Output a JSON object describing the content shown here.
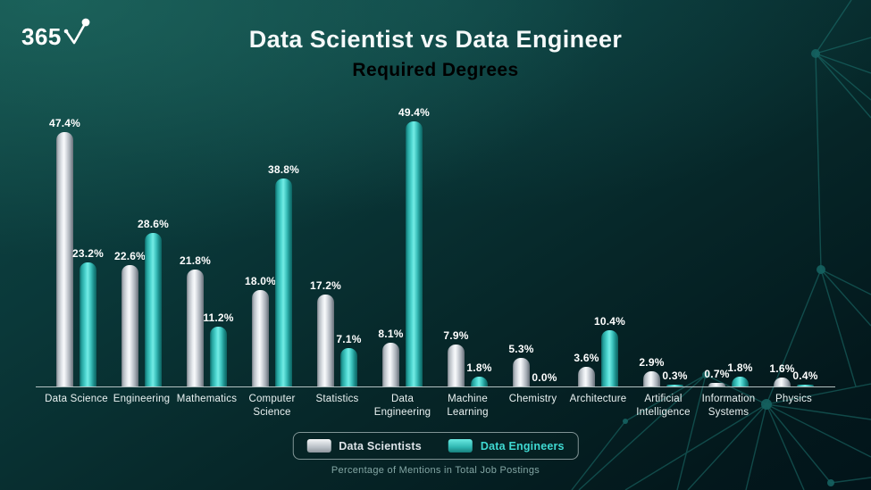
{
  "logo": {
    "text": "365",
    "icon": "check-root-icon"
  },
  "header": {
    "title": "Data Scientist vs Data Engineer",
    "subtitle": "Required Degrees"
  },
  "caption": "Percentage of Mentions in Total Job Postings",
  "colors": {
    "subtitle_gold": "#f0c646",
    "bar_silver": "#d9dee3",
    "bar_teal": "#45dcd5",
    "legend_teal_text": "#3fd9d2",
    "axis_line": "#c7d3d3",
    "background_dark": "#03181c"
  },
  "chart_data": {
    "type": "bar",
    "title": "Data Scientist vs Data Engineer",
    "subtitle": "Required Degrees",
    "xlabel": "",
    "ylabel": "Percentage of Mentions in Total Job Postings",
    "ylim": [
      0,
      50
    ],
    "grid": false,
    "legend_position": "bottom",
    "value_suffix": "%",
    "categories": [
      "Data Science",
      "Engineering",
      "Mathematics",
      "Computer Science",
      "Statistics",
      "Data Engineering",
      "Machine Learning",
      "Chemistry",
      "Architecture",
      "Artificial Intelligence",
      "Information Systems",
      "Physics"
    ],
    "series": [
      {
        "name": "Data Scientists",
        "values": [
          47.4,
          22.6,
          21.8,
          18.0,
          17.2,
          8.1,
          7.9,
          5.3,
          3.6,
          2.9,
          0.7,
          1.6
        ]
      },
      {
        "name": "Data Engineers",
        "values": [
          23.2,
          28.6,
          11.2,
          38.8,
          7.1,
          49.4,
          1.8,
          0.0,
          10.4,
          0.3,
          1.8,
          0.4
        ]
      }
    ]
  }
}
